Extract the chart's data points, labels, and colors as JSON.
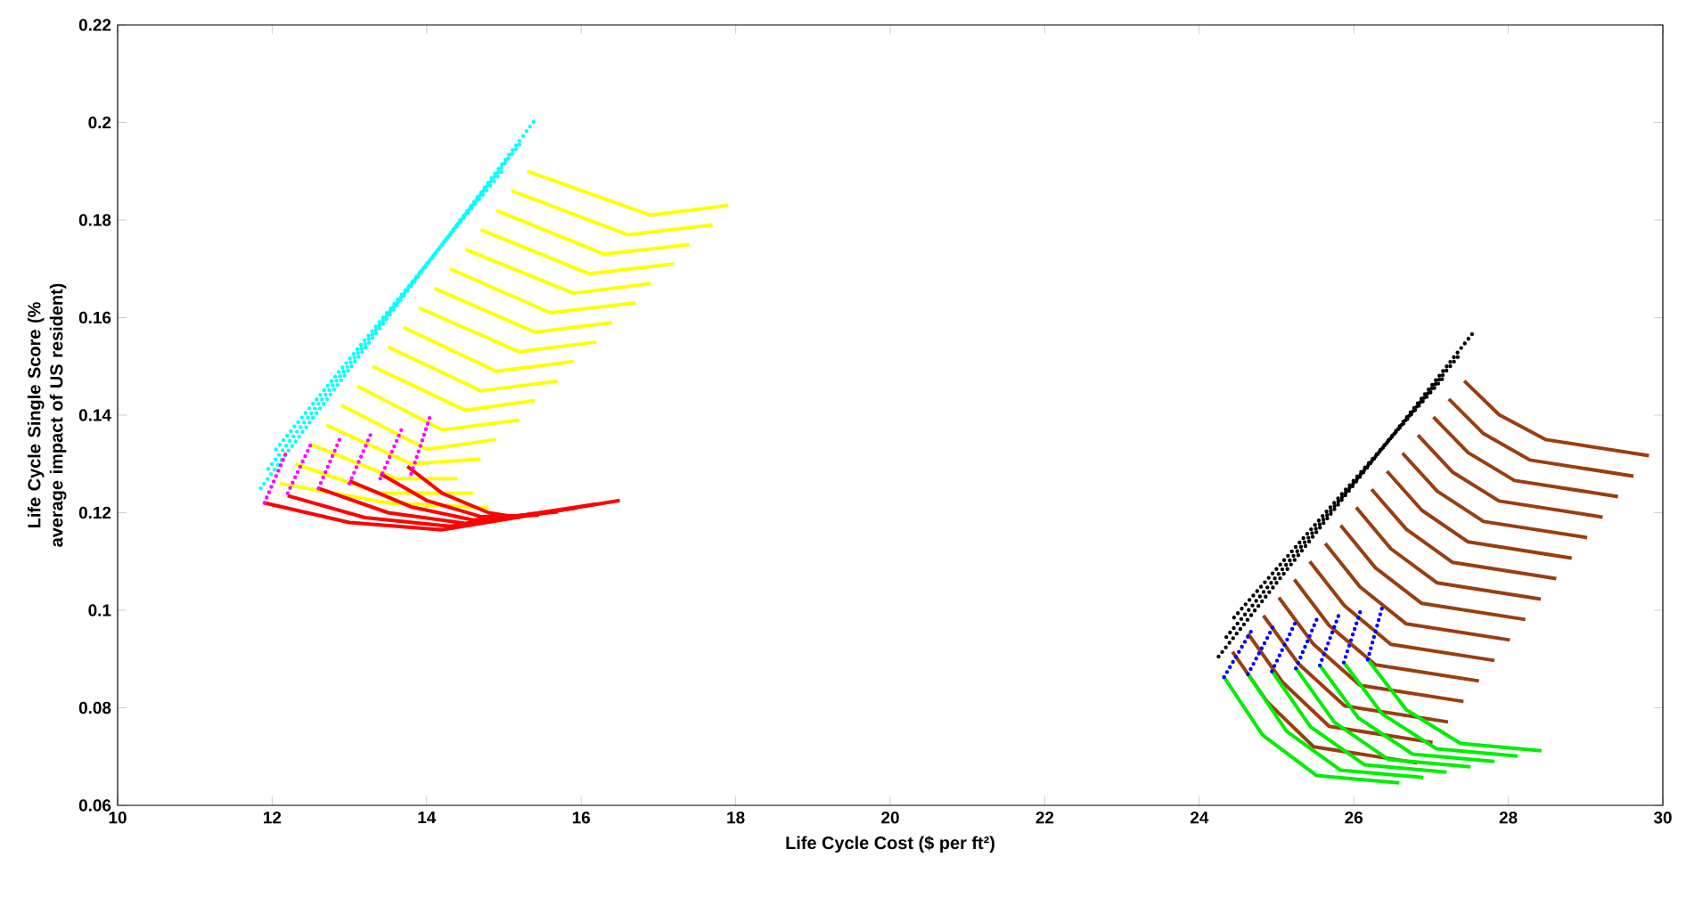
{
  "chart_data": {
    "type": "line",
    "xlabel": "Life Cycle Cost ($ per ft²)",
    "ylabel": "Life Cycle Single Score (% average impact of US resident)",
    "xlim": [
      10,
      30
    ],
    "ylim": [
      0.06,
      0.22
    ],
    "xticks": [
      10,
      12,
      14,
      16,
      18,
      20,
      22,
      24,
      26,
      28,
      30
    ],
    "yticks": [
      0.06,
      0.08,
      0.1,
      0.12,
      0.14,
      0.16,
      0.18,
      0.2,
      0.22
    ],
    "line_style": "solid",
    "series": [
      {
        "color": "#ffff00",
        "x": [
          15.3,
          16.9,
          17.9
        ],
        "values": [
          0.19,
          0.181,
          0.183
        ]
      },
      {
        "color": "#ffff00",
        "x": [
          15.1,
          16.6,
          17.7
        ],
        "values": [
          0.186,
          0.177,
          0.179
        ]
      },
      {
        "color": "#ffff00",
        "x": [
          14.9,
          16.3,
          17.4
        ],
        "values": [
          0.182,
          0.173,
          0.175
        ]
      },
      {
        "color": "#ffff00",
        "x": [
          14.7,
          16.1,
          17.2
        ],
        "values": [
          0.178,
          0.169,
          0.171
        ]
      },
      {
        "color": "#ffff00",
        "x": [
          14.5,
          15.9,
          16.9
        ],
        "values": [
          0.174,
          0.165,
          0.167
        ]
      },
      {
        "color": "#ffff00",
        "x": [
          14.3,
          15.6,
          16.7
        ],
        "values": [
          0.17,
          0.161,
          0.163
        ]
      },
      {
        "color": "#ffff00",
        "x": [
          14.1,
          15.4,
          16.4
        ],
        "values": [
          0.166,
          0.157,
          0.159
        ]
      },
      {
        "color": "#ffff00",
        "x": [
          13.9,
          15.2,
          16.2
        ],
        "values": [
          0.162,
          0.153,
          0.155
        ]
      },
      {
        "color": "#ffff00",
        "x": [
          13.7,
          14.9,
          15.9
        ],
        "values": [
          0.158,
          0.149,
          0.151
        ]
      },
      {
        "color": "#ffff00",
        "x": [
          13.5,
          14.7,
          15.7
        ],
        "values": [
          0.154,
          0.145,
          0.147
        ]
      },
      {
        "color": "#ffff00",
        "x": [
          13.3,
          14.5,
          15.4
        ],
        "values": [
          0.15,
          0.141,
          0.143
        ]
      },
      {
        "color": "#ffff00",
        "x": [
          13.1,
          14.2,
          15.2
        ],
        "values": [
          0.146,
          0.137,
          0.139
        ]
      },
      {
        "color": "#ffff00",
        "x": [
          12.9,
          14.0,
          14.9
        ],
        "values": [
          0.142,
          0.133,
          0.135
        ]
      },
      {
        "color": "#ffff00",
        "x": [
          12.7,
          13.8,
          14.7
        ],
        "values": [
          0.138,
          0.13,
          0.131
        ]
      },
      {
        "color": "#ffff00",
        "x": [
          12.5,
          13.6,
          14.4
        ],
        "values": [
          0.134,
          0.127,
          0.127
        ]
      },
      {
        "color": "#ffff00",
        "x": [
          12.3,
          13.4,
          14.6
        ],
        "values": [
          0.13,
          0.124,
          0.124
        ]
      },
      {
        "color": "#ffff00",
        "x": [
          12.1,
          13.5,
          14.8
        ],
        "values": [
          0.126,
          0.122,
          0.121
        ]
      },
      {
        "color": "#ff0000",
        "x": [
          11.9,
          13.0,
          14.2,
          16.5
        ],
        "values": [
          0.122,
          0.118,
          0.1165,
          0.1225
        ]
      },
      {
        "color": "#ff0000",
        "x": [
          12.2,
          13.2,
          14.3,
          16.2
        ],
        "values": [
          0.1235,
          0.119,
          0.1172,
          0.1218
        ]
      },
      {
        "color": "#ff0000",
        "x": [
          12.6,
          13.5,
          14.5,
          15.95
        ],
        "values": [
          0.125,
          0.12,
          0.1178,
          0.121
        ]
      },
      {
        "color": "#ff0000",
        "x": [
          13.0,
          13.8,
          14.6,
          15.7
        ],
        "values": [
          0.1265,
          0.1212,
          0.1185,
          0.1202
        ]
      },
      {
        "color": "#ff0000",
        "x": [
          13.4,
          14.0,
          14.7,
          15.45
        ],
        "values": [
          0.128,
          0.1225,
          0.1192,
          0.1195
        ]
      },
      {
        "color": "#ff0000",
        "x": [
          13.75,
          14.2,
          14.8,
          15.2
        ],
        "values": [
          0.1295,
          0.124,
          0.12,
          0.119
        ]
      },
      {
        "color": "#00ffff",
        "line_style": "dotted",
        "x": [
          11.85,
          15.4
        ],
        "values": [
          0.125,
          0.2005
        ]
      },
      {
        "color": "#00ffff",
        "line_style": "dotted",
        "x": [
          11.95,
          15.2
        ],
        "values": [
          0.129,
          0.1955
        ]
      },
      {
        "color": "#00ffff",
        "line_style": "dotted",
        "x": [
          12.05,
          15.0
        ],
        "values": [
          0.133,
          0.1905
        ]
      },
      {
        "color": "#ff00ff",
        "line_style": "dotted",
        "x": [
          11.9,
          12.2
        ],
        "values": [
          0.122,
          0.133
        ]
      },
      {
        "color": "#ff00ff",
        "line_style": "dotted",
        "x": [
          12.2,
          12.5
        ],
        "values": [
          0.124,
          0.134
        ]
      },
      {
        "color": "#ff00ff",
        "line_style": "dotted",
        "x": [
          12.6,
          12.9
        ],
        "values": [
          0.125,
          0.136
        ]
      },
      {
        "color": "#ff00ff",
        "line_style": "dotted",
        "x": [
          13.0,
          13.3
        ],
        "values": [
          0.126,
          0.137
        ]
      },
      {
        "color": "#ff00ff",
        "line_style": "dotted",
        "x": [
          13.4,
          13.7
        ],
        "values": [
          0.127,
          0.138
        ]
      },
      {
        "color": "#ff00ff",
        "line_style": "dotted",
        "x": [
          13.8,
          14.05
        ],
        "values": [
          0.128,
          0.14
        ]
      },
      {
        "color": "#9b3d0f",
        "x": [
          27.43,
          27.88,
          28.48,
          29.82
        ],
        "values": [
          0.147,
          0.1401,
          0.135,
          0.1317
        ]
      },
      {
        "color": "#9b3d0f",
        "x": [
          27.23,
          27.68,
          28.28,
          29.62
        ],
        "values": [
          0.1433,
          0.1362,
          0.1308,
          0.1275
        ]
      },
      {
        "color": "#9b3d0f",
        "x": [
          27.03,
          27.48,
          28.08,
          29.42
        ],
        "values": [
          0.1396,
          0.1323,
          0.1266,
          0.1233
        ]
      },
      {
        "color": "#9b3d0f",
        "x": [
          26.83,
          27.28,
          27.88,
          29.22
        ],
        "values": [
          0.1359,
          0.1283,
          0.1224,
          0.1191
        ]
      },
      {
        "color": "#9b3d0f",
        "x": [
          26.63,
          27.08,
          27.68,
          29.02
        ],
        "values": [
          0.1322,
          0.1244,
          0.1182,
          0.1149
        ]
      },
      {
        "color": "#9b3d0f",
        "x": [
          26.43,
          26.88,
          27.48,
          28.82
        ],
        "values": [
          0.1285,
          0.1205,
          0.114,
          0.1107
        ]
      },
      {
        "color": "#9b3d0f",
        "x": [
          26.23,
          26.68,
          27.28,
          28.62
        ],
        "values": [
          0.1248,
          0.1166,
          0.1098,
          0.1065
        ]
      },
      {
        "color": "#9b3d0f",
        "x": [
          26.03,
          26.48,
          27.08,
          28.42
        ],
        "values": [
          0.1211,
          0.1126,
          0.1056,
          0.1023
        ]
      },
      {
        "color": "#9b3d0f",
        "x": [
          25.83,
          26.28,
          26.88,
          28.22
        ],
        "values": [
          0.1174,
          0.1087,
          0.1014,
          0.0981
        ]
      },
      {
        "color": "#9b3d0f",
        "x": [
          25.63,
          26.08,
          26.68,
          28.02
        ],
        "values": [
          0.1137,
          0.1048,
          0.0972,
          0.0939
        ]
      },
      {
        "color": "#9b3d0f",
        "x": [
          25.43,
          25.88,
          26.48,
          27.82
        ],
        "values": [
          0.11,
          0.1009,
          0.093,
          0.0897
        ]
      },
      {
        "color": "#9b3d0f",
        "x": [
          25.23,
          25.68,
          26.28,
          27.62
        ],
        "values": [
          0.1063,
          0.0969,
          0.0888,
          0.0855
        ]
      },
      {
        "color": "#9b3d0f",
        "x": [
          25.03,
          25.48,
          26.08,
          27.42
        ],
        "values": [
          0.1026,
          0.093,
          0.0846,
          0.0813
        ]
      },
      {
        "color": "#9b3d0f",
        "x": [
          24.83,
          25.28,
          25.88,
          27.22
        ],
        "values": [
          0.0989,
          0.0891,
          0.0804,
          0.0771
        ]
      },
      {
        "color": "#9b3d0f",
        "x": [
          24.63,
          25.08,
          25.68,
          27.02
        ],
        "values": [
          0.0952,
          0.0852,
          0.0762,
          0.0729
        ]
      },
      {
        "color": "#9b3d0f",
        "x": [
          24.43,
          24.88,
          25.48,
          26.82
        ],
        "values": [
          0.0915,
          0.0812,
          0.072,
          0.0687
        ]
      },
      {
        "color": "#00ee00",
        "x": [
          24.32,
          24.82,
          25.52,
          26.59
        ],
        "values": [
          0.0863,
          0.0744,
          0.0661,
          0.0646
        ]
      },
      {
        "color": "#00ee00",
        "x": [
          24.63,
          25.13,
          25.83,
          26.9
        ],
        "values": [
          0.0869,
          0.0752,
          0.0672,
          0.0657
        ]
      },
      {
        "color": "#00ee00",
        "x": [
          24.94,
          25.44,
          26.14,
          27.2
        ],
        "values": [
          0.0875,
          0.0761,
          0.0683,
          0.0668
        ]
      },
      {
        "color": "#00ee00",
        "x": [
          25.25,
          25.75,
          26.45,
          27.51
        ],
        "values": [
          0.0881,
          0.077,
          0.0694,
          0.0679
        ]
      },
      {
        "color": "#00ee00",
        "x": [
          25.56,
          26.06,
          26.76,
          27.82
        ],
        "values": [
          0.0887,
          0.0779,
          0.0705,
          0.069
        ]
      },
      {
        "color": "#00ee00",
        "x": [
          25.87,
          26.37,
          27.07,
          28.12
        ],
        "values": [
          0.0893,
          0.0787,
          0.0716,
          0.0701
        ]
      },
      {
        "color": "#00ee00",
        "x": [
          26.18,
          26.68,
          27.38,
          28.43
        ],
        "values": [
          0.0899,
          0.0796,
          0.0727,
          0.0712
        ]
      },
      {
        "color": "#000000",
        "line_style": "dotted",
        "x": [
          24.25,
          27.55
        ],
        "values": [
          0.0905,
          0.157
        ]
      },
      {
        "color": "#000000",
        "line_style": "dotted",
        "x": [
          24.35,
          27.35
        ],
        "values": [
          0.0945,
          0.152
        ]
      },
      {
        "color": "#000000",
        "line_style": "dotted",
        "x": [
          24.45,
          27.15
        ],
        "values": [
          0.0985,
          0.1475
        ]
      },
      {
        "color": "#0000ff",
        "line_style": "dotted",
        "x": [
          24.32,
          24.69
        ],
        "values": [
          0.0863,
          0.0962
        ]
      },
      {
        "color": "#0000ff",
        "line_style": "dotted",
        "x": [
          24.63,
          24.97
        ],
        "values": [
          0.0869,
          0.097
        ]
      },
      {
        "color": "#0000ff",
        "line_style": "dotted",
        "x": [
          24.94,
          25.25
        ],
        "values": [
          0.0875,
          0.0977
        ]
      },
      {
        "color": "#0000ff",
        "line_style": "dotted",
        "x": [
          25.25,
          25.53
        ],
        "values": [
          0.0881,
          0.0985
        ]
      },
      {
        "color": "#0000ff",
        "line_style": "dotted",
        "x": [
          25.56,
          25.81
        ],
        "values": [
          0.0887,
          0.0992
        ]
      },
      {
        "color": "#0000ff",
        "line_style": "dotted",
        "x": [
          25.87,
          26.09
        ],
        "values": [
          0.0893,
          0.1
        ]
      },
      {
        "color": "#0000ff",
        "line_style": "dotted",
        "x": [
          26.18,
          26.37
        ],
        "values": [
          0.0899,
          0.1007
        ]
      }
    ]
  }
}
